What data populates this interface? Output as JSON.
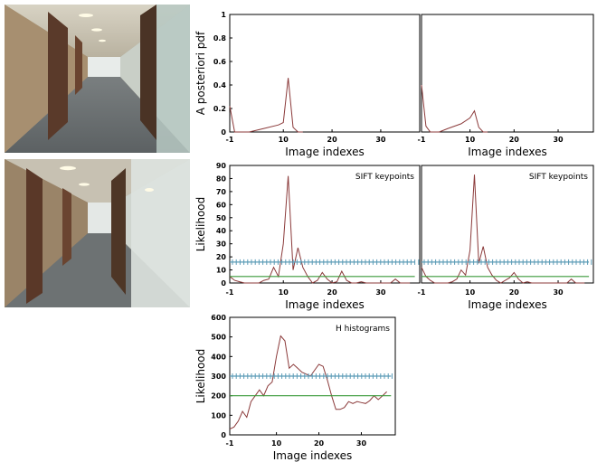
{
  "images": [
    {
      "name": "corridor-photo-top"
    },
    {
      "name": "corridor-photo-bottom"
    }
  ],
  "colors": {
    "likelihood": "#8b3a3a",
    "threshold_high": "#5b9bb6",
    "threshold_low": "#3a9a3a"
  },
  "chart_data": [
    {
      "id": "posterior-left",
      "type": "line",
      "ylabel": "A posteriori pdf",
      "xlabel": "Image indexes",
      "annotation": "",
      "xlim": [
        -1,
        38
      ],
      "ylim": [
        0,
        1
      ],
      "xticks": [
        "-1",
        "10",
        "20",
        "30"
      ],
      "yticks": [
        "0",
        "0.2",
        "0.4",
        "0.6",
        "0.8",
        "1"
      ],
      "series": [
        {
          "color": "#8b3a3a",
          "x": [
            -1,
            0,
            3,
            6,
            9,
            10,
            11,
            12,
            13,
            14
          ],
          "y": [
            0.22,
            0.0,
            0.0,
            0.03,
            0.06,
            0.08,
            0.46,
            0.04,
            0.0,
            0.0
          ]
        }
      ]
    },
    {
      "id": "posterior-right",
      "type": "line",
      "ylabel": "",
      "xlabel": "Image indexes",
      "annotation": "",
      "xlim": [
        -1,
        38
      ],
      "ylim": [
        0,
        1
      ],
      "xticks": [
        "-1",
        "10",
        "20",
        "30"
      ],
      "yticks": [],
      "series": [
        {
          "color": "#8b3a3a",
          "x": [
            -1,
            0,
            1,
            3,
            5,
            8,
            10,
            11,
            12,
            13,
            14
          ],
          "y": [
            0.4,
            0.05,
            0.0,
            0.0,
            0.03,
            0.07,
            0.12,
            0.18,
            0.04,
            0.0,
            0.0
          ]
        }
      ]
    },
    {
      "id": "sift-left",
      "type": "line",
      "ylabel": "Likelihood",
      "xlabel": "Image indexes",
      "annotation": "SIFT keypoints",
      "xlim": [
        -1,
        38
      ],
      "ylim": [
        0,
        90
      ],
      "xticks": [
        "-1",
        "10",
        "20",
        "30"
      ],
      "yticks": [
        "0",
        "10",
        "20",
        "30",
        "40",
        "50",
        "60",
        "70",
        "80",
        "90"
      ],
      "series": [
        {
          "color": "#8b3a3a",
          "x": [
            -1,
            0,
            1,
            2,
            3,
            4,
            5,
            6,
            7,
            8,
            9,
            10,
            11,
            12,
            13,
            14,
            15,
            16,
            17,
            18,
            19,
            20,
            21,
            22,
            23,
            24,
            25,
            26,
            27,
            28,
            29,
            30,
            31,
            32,
            33,
            34,
            35,
            36
          ],
          "y": [
            5,
            2,
            1,
            0,
            0,
            0,
            0,
            2,
            3,
            12,
            5,
            30,
            82,
            10,
            27,
            12,
            5,
            0,
            2,
            8,
            3,
            0,
            1,
            9,
            2,
            0,
            0,
            1,
            0,
            0,
            0,
            0,
            0,
            0,
            3,
            0,
            0,
            0
          ]
        },
        {
          "color": "#5b9bb6",
          "style": "hatched",
          "x": [
            -1,
            37
          ],
          "y": [
            16,
            16
          ]
        },
        {
          "color": "#3a9a3a",
          "x": [
            -1,
            37
          ],
          "y": [
            5,
            5
          ]
        }
      ]
    },
    {
      "id": "sift-right",
      "type": "line",
      "ylabel": "",
      "xlabel": "Image indexes",
      "annotation": "SIFT keypoints",
      "xlim": [
        -1,
        38
      ],
      "ylim": [
        0,
        90
      ],
      "xticks": [
        "-1",
        "10",
        "20",
        "30"
      ],
      "yticks": [],
      "series": [
        {
          "color": "#8b3a3a",
          "x": [
            -1,
            0,
            1,
            2,
            3,
            4,
            5,
            6,
            7,
            8,
            9,
            10,
            11,
            12,
            13,
            14,
            15,
            16,
            17,
            18,
            19,
            20,
            21,
            22,
            23,
            24,
            25,
            26,
            27,
            28,
            29,
            30,
            31,
            32,
            33,
            34,
            35,
            36
          ],
          "y": [
            12,
            5,
            2,
            0,
            0,
            0,
            0,
            1,
            3,
            10,
            6,
            25,
            83,
            15,
            28,
            12,
            6,
            2,
            0,
            2,
            4,
            8,
            3,
            0,
            1,
            0,
            0,
            0,
            0,
            0,
            0,
            0,
            0,
            0,
            3,
            0,
            0,
            0
          ]
        },
        {
          "color": "#5b9bb6",
          "style": "hatched",
          "x": [
            -1,
            37
          ],
          "y": [
            16,
            16
          ]
        },
        {
          "color": "#3a9a3a",
          "x": [
            -1,
            37
          ],
          "y": [
            5,
            5
          ]
        }
      ]
    },
    {
      "id": "histogram",
      "type": "line",
      "ylabel": "Likelihood",
      "xlabel": "Image indexes",
      "annotation": "H histograms",
      "xlim": [
        -1,
        38
      ],
      "ylim": [
        0,
        600
      ],
      "xticks": [
        "-1",
        "10",
        "20",
        "30"
      ],
      "yticks": [
        "0",
        "100",
        "200",
        "300",
        "400",
        "500",
        "600"
      ],
      "series": [
        {
          "color": "#8b3a3a",
          "x": [
            -1,
            0,
            1,
            2,
            3,
            4,
            5,
            6,
            7,
            8,
            9,
            10,
            11,
            12,
            13,
            14,
            15,
            16,
            17,
            18,
            19,
            20,
            21,
            22,
            23,
            24,
            25,
            26,
            27,
            28,
            29,
            30,
            31,
            32,
            33,
            34,
            35,
            36
          ],
          "y": [
            30,
            40,
            70,
            120,
            90,
            170,
            200,
            230,
            200,
            250,
            270,
            400,
            505,
            480,
            340,
            360,
            340,
            320,
            310,
            300,
            330,
            360,
            350,
            280,
            200,
            130,
            130,
            140,
            170,
            160,
            170,
            165,
            160,
            175,
            200,
            180,
            200,
            220
          ]
        },
        {
          "color": "#5b9bb6",
          "style": "hatched",
          "x": [
            -1,
            37
          ],
          "y": [
            300,
            300
          ]
        },
        {
          "color": "#3a9a3a",
          "x": [
            -1,
            37
          ],
          "y": [
            200,
            200
          ]
        }
      ]
    }
  ]
}
